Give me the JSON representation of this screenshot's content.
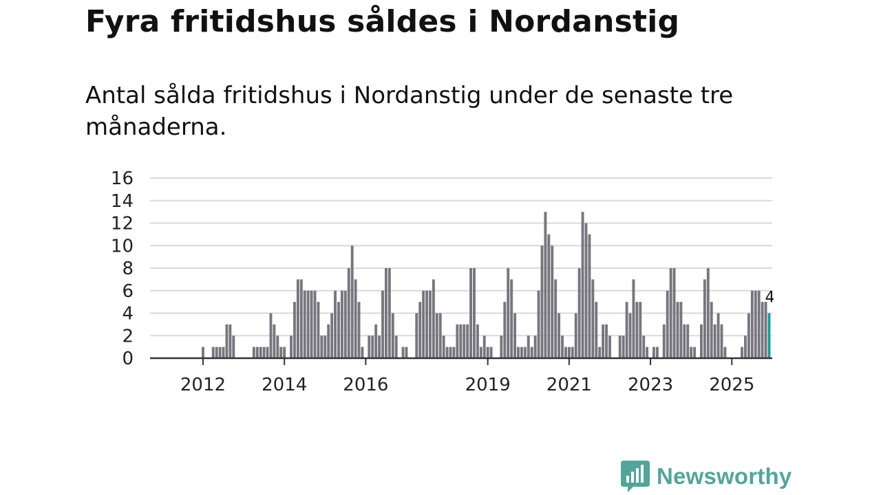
{
  "title": "Fyra fritidshus såldes i Nordanstig",
  "subtitle": "Antal sålda fritidshus i Nordanstig under de senaste tre månaderna.",
  "logo": {
    "text": "Newsworthy",
    "icon": "bar-chart-speech-bubble-icon"
  },
  "colors": {
    "bar": "#77767e",
    "highlight": "#1d9a9a",
    "grid": "#d9d9d9",
    "axis": "#333333",
    "brand": "#55a49a"
  },
  "chart_data": {
    "type": "bar",
    "title": "Fyra fritidshus såldes i Nordanstig",
    "subtitle": "Antal sålda fritidshus i Nordanstig under de senaste tre månaderna.",
    "xlabel": "",
    "ylabel": "",
    "ylim": [
      0,
      16
    ],
    "y_ticks": [
      "0",
      "2",
      "4",
      "6",
      "8",
      "10",
      "12",
      "14",
      "16"
    ],
    "x_ticks": [
      {
        "label": "2012",
        "index": 7
      },
      {
        "label": "2014",
        "index": 31
      },
      {
        "label": "2016",
        "index": 55
      },
      {
        "label": "2019",
        "index": 91
      },
      {
        "label": "2021",
        "index": 115
      },
      {
        "label": "2023",
        "index": 139
      },
      {
        "label": "2025",
        "index": 163
      }
    ],
    "grid": true,
    "highlight_last": true,
    "last_value_label": "4",
    "values": [
      0,
      0,
      0,
      0,
      0,
      0,
      0,
      1,
      0,
      0,
      1,
      1,
      1,
      1,
      3,
      3,
      2,
      0,
      0,
      0,
      0,
      0,
      1,
      1,
      1,
      1,
      1,
      4,
      3,
      2,
      1,
      1,
      0,
      2,
      5,
      7,
      7,
      6,
      6,
      6,
      6,
      5,
      2,
      2,
      3,
      4,
      6,
      5,
      6,
      6,
      8,
      10,
      7,
      5,
      1,
      0,
      2,
      2,
      3,
      2,
      6,
      8,
      8,
      4,
      2,
      0,
      1,
      1,
      0,
      0,
      4,
      5,
      6,
      6,
      6,
      7,
      4,
      4,
      2,
      1,
      1,
      1,
      3,
      3,
      3,
      3,
      8,
      8,
      3,
      1,
      2,
      1,
      1,
      0,
      0,
      2,
      5,
      8,
      7,
      4,
      1,
      1,
      1,
      2,
      1,
      2,
      6,
      10,
      13,
      11,
      10,
      7,
      4,
      2,
      1,
      1,
      1,
      4,
      8,
      13,
      12,
      11,
      7,
      5,
      1,
      3,
      3,
      2,
      0,
      0,
      2,
      2,
      5,
      4,
      7,
      5,
      5,
      2,
      1,
      0,
      1,
      1,
      0,
      3,
      6,
      8,
      8,
      5,
      5,
      3,
      3,
      1,
      1,
      0,
      3,
      7,
      8,
      5,
      3,
      4,
      3,
      1,
      0,
      0,
      0,
      0,
      1,
      2,
      4,
      6,
      6,
      6,
      5,
      5,
      4
    ]
  }
}
